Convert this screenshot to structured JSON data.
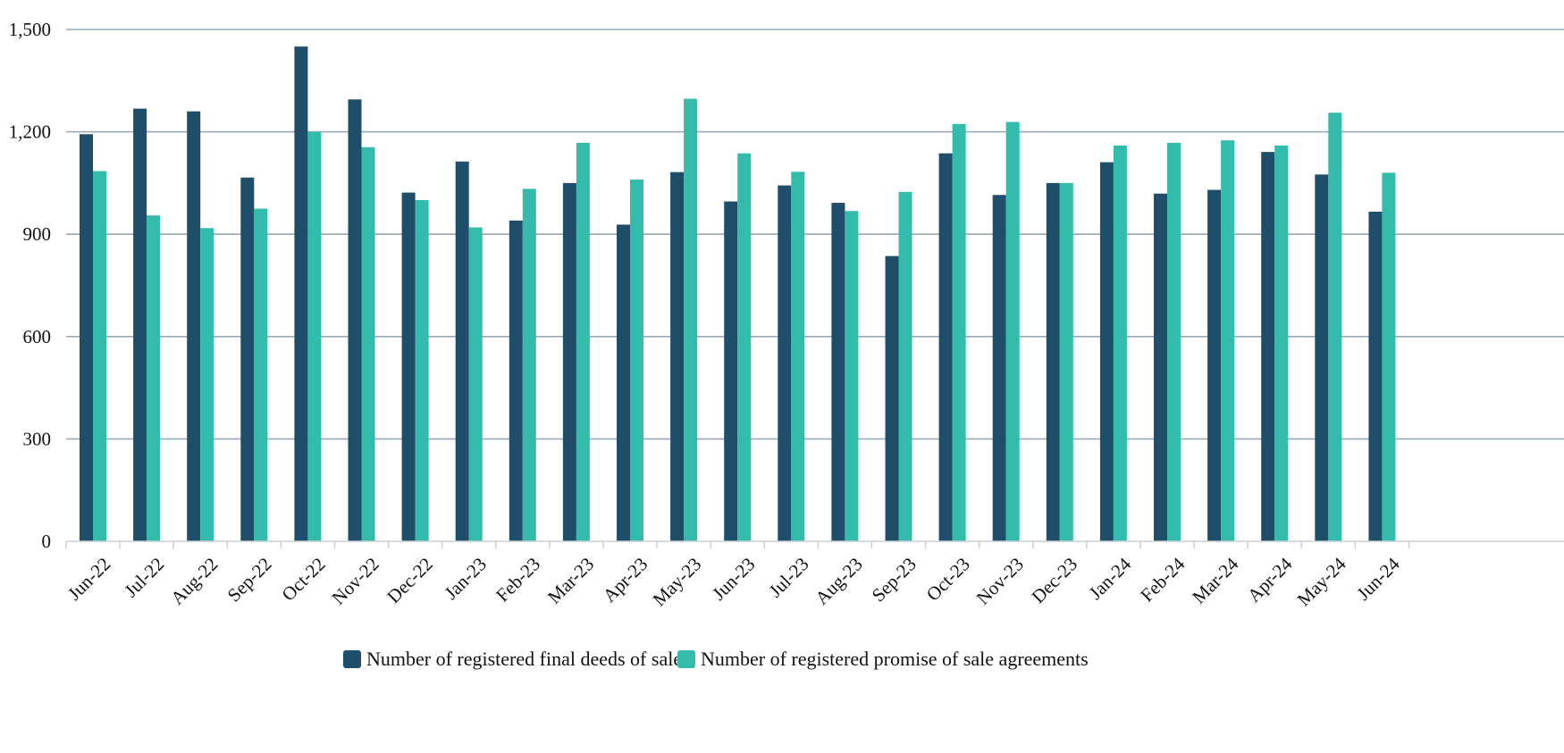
{
  "chart_data": {
    "type": "bar",
    "title": "",
    "xlabel": "",
    "ylabel": "",
    "categories": [
      "Jun-22",
      "Jul-22",
      "Aug-22",
      "Sep-22",
      "Oct-22",
      "Nov-22",
      "Dec-22",
      "Jan-23",
      "Feb-23",
      "Mar-23",
      "Apr-23",
      "May-23",
      "Jun-23",
      "Jul-23",
      "Aug-23",
      "Sep-23",
      "Oct-23",
      "Nov-23",
      "Dec-23",
      "Jan-24",
      "Feb-24",
      "Mar-24",
      "Apr-24",
      "May-24",
      "Jun-24"
    ],
    "series": [
      {
        "name": "Number of registered final deeds of sale",
        "color": "#1f4e6b",
        "values": [
          1193,
          1268,
          1260,
          1066,
          1450,
          1295,
          1022,
          1113,
          940,
          1050,
          928,
          1082,
          996,
          1043,
          992,
          836,
          1137,
          1015,
          1050,
          1111,
          1019,
          1030,
          1141,
          1075,
          966
        ]
      },
      {
        "name": "Number of registered promise of sale agreements",
        "color": "#33bcab",
        "values": [
          1085,
          955,
          918,
          975,
          1200,
          1155,
          1000,
          920,
          1033,
          1168,
          1060,
          1297,
          1137,
          1083,
          968,
          1024,
          1223,
          1229,
          1050,
          1160,
          1168,
          1175,
          1160,
          1256,
          1080
        ]
      }
    ],
    "ylim": [
      0,
      1500
    ],
    "yticks": [
      "0",
      "300",
      "600",
      "900",
      "1,200",
      "1,500"
    ],
    "ytick_values": [
      0,
      300,
      600,
      900,
      1200,
      1500
    ],
    "grid": true,
    "legend_position": "bottom-center",
    "gridline_color": "#9aa8b6"
  }
}
